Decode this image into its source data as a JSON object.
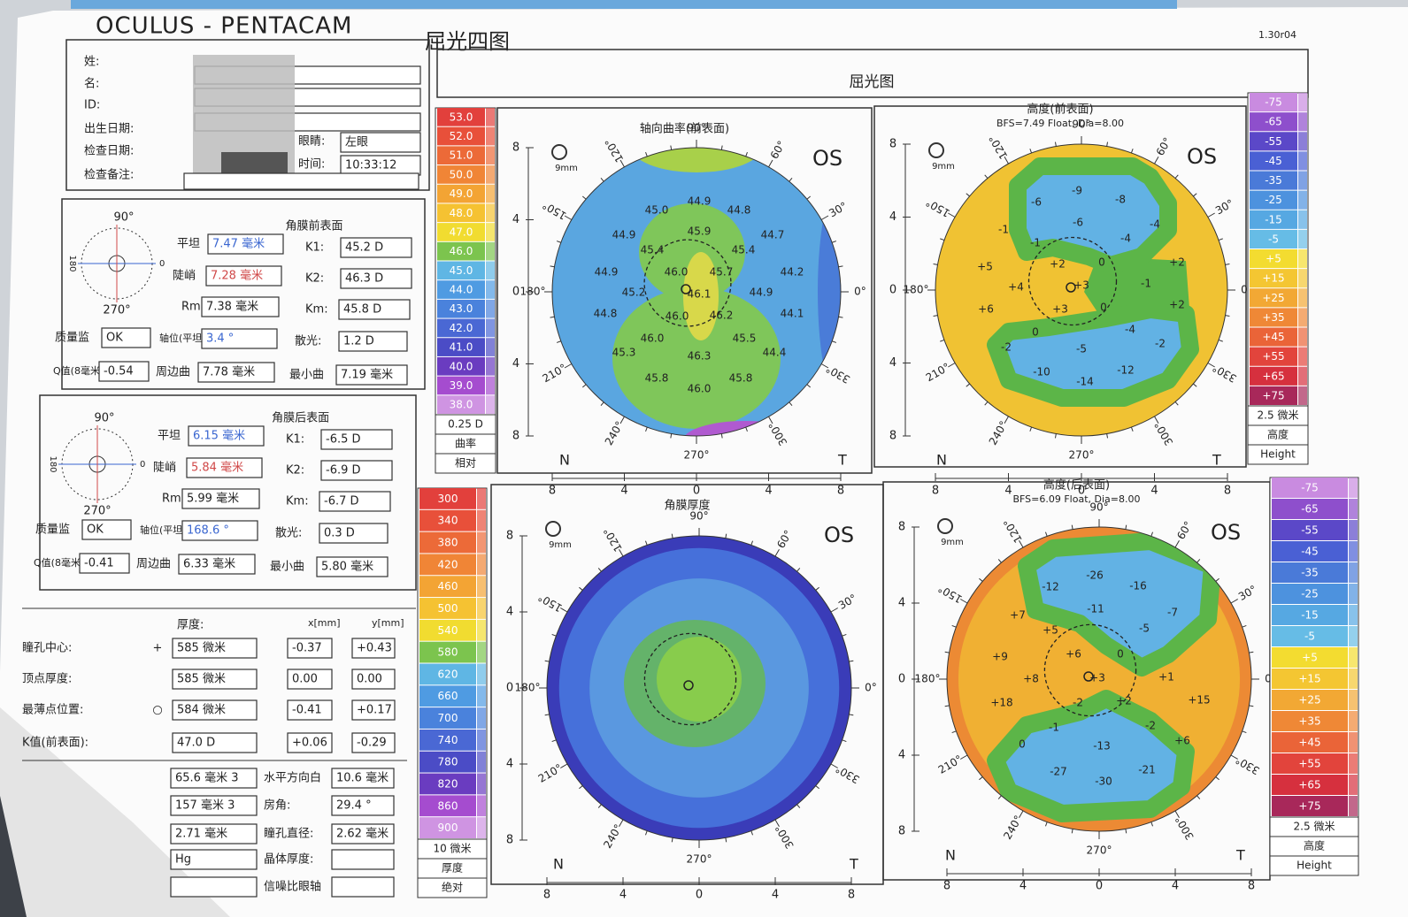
{
  "header": {
    "brand": "OCULUS - PENTACAM",
    "title": "屈光四图",
    "version": "1.30r04"
  },
  "patient": {
    "labels": [
      "姓:",
      "名:",
      "ID:",
      "出生日期:",
      "检查日期:",
      "检查备注:"
    ],
    "eye_label": "眼睛:",
    "eye": "左眼",
    "time_label": "时间:",
    "time": "10:33:12"
  },
  "anterior": {
    "title": "角膜前表面",
    "dial": [
      "90°",
      "270°",
      "0",
      "180"
    ],
    "fields": [
      {
        "label": "平坦",
        "value": "7.47 毫米"
      },
      {
        "label": "K1:",
        "value": "45.2 D"
      },
      {
        "label": "陡峭",
        "value": "7.28 毫米"
      },
      {
        "label": "K2:",
        "value": "46.3 D"
      },
      {
        "label": "Rm:",
        "value": "7.38 毫米"
      },
      {
        "label": "Km:",
        "value": "45.8 D"
      },
      {
        "label": "质量监",
        "value": "OK"
      },
      {
        "label": "轴位(平坦)",
        "value": "3.4 °"
      },
      {
        "label": "散光:",
        "value": "1.2 D"
      },
      {
        "label": "Q值(8毫米)",
        "value": "-0.54"
      },
      {
        "label": "周边曲",
        "value": "7.78 毫米"
      },
      {
        "label": "最小曲",
        "value": "7.19 毫米"
      }
    ]
  },
  "posterior": {
    "title": "角膜后表面",
    "dial": [
      "90°",
      "270°",
      "0",
      "180"
    ],
    "fields": [
      {
        "label": "平坦",
        "value": "6.15 毫米"
      },
      {
        "label": "K1:",
        "value": "-6.5 D"
      },
      {
        "label": "陡峭",
        "value": "5.84 毫米"
      },
      {
        "label": "K2:",
        "value": "-6.9 D"
      },
      {
        "label": "Rm:",
        "value": "5.99 毫米"
      },
      {
        "label": "Km:",
        "value": "-6.7 D"
      },
      {
        "label": "质量监",
        "value": "OK"
      },
      {
        "label": "轴位(平坦)",
        "value": "168.6 °"
      },
      {
        "label": "散光:",
        "value": "0.3 D"
      },
      {
        "label": "Q值(8毫米)",
        "value": "-0.41"
      },
      {
        "label": "周边曲",
        "value": "6.33 毫米"
      },
      {
        "label": "最小曲",
        "value": "5.80 毫米"
      }
    ]
  },
  "thickness": {
    "headers": [
      "厚度:",
      "x[mm]",
      "y[mm]"
    ],
    "rows": [
      {
        "label": "瞳孔中心:",
        "symbol": "+",
        "thickness": "585 微米",
        "x": "-0.37",
        "y": "+0.43"
      },
      {
        "label": "顶点厚度:",
        "thickness": "585 微米",
        "x": "0.00",
        "y": "0.00"
      },
      {
        "label": "最薄点位置:",
        "symbol": "○",
        "thickness": "584 微米",
        "x": "-0.41",
        "y": "+0.17"
      },
      {
        "label": "K值(前表面):",
        "thickness": "47.0 D",
        "x": "+0.06",
        "y": "-0.29"
      }
    ]
  },
  "chamber": {
    "rows": [
      {
        "left": "65.6 毫米 3",
        "label": "水平方向白",
        "right": "10.6 毫米"
      },
      {
        "left": "157 毫米 3",
        "label": "房角:",
        "right": "29.4 °"
      },
      {
        "left": "2.71 毫米",
        "label": "瞳孔直径:",
        "right": "2.62 毫米"
      },
      {
        "left": "Hg",
        "label": "晶体厚度:"
      },
      {
        "label": "信噪比眼轴"
      }
    ]
  },
  "banner": "屈光图",
  "maps": [
    {
      "title": "轴向曲率(前表面)",
      "eye": "OS",
      "zoom": "9mm",
      "nasal": "N",
      "temporal": "T",
      "angles": [
        "90°",
        "60°",
        "30°",
        "0°",
        "330°",
        "300°",
        "270°",
        "240°",
        "210°",
        "180°",
        "150°",
        "120°"
      ],
      "x_axis": [
        "8",
        "4",
        "0",
        "4",
        "8"
      ],
      "y_axis": [
        "8",
        "4",
        "0",
        "4",
        "8"
      ],
      "scale": {
        "labels": [
          "53.0",
          "52.0",
          "51.0",
          "50.0",
          "49.0",
          "48.0",
          "47.0",
          "46.0",
          "45.0",
          "44.0",
          "43.0",
          "42.0",
          "41.0",
          "40.0",
          "39.0",
          "38.0"
        ],
        "colors": [
          "#e2403c",
          "#e8503a",
          "#ec6a38",
          "#f08536",
          "#f3a434",
          "#f5c232",
          "#f1dc30",
          "#7cc44e",
          "#5fb6e4",
          "#4f9be2",
          "#4a82dc",
          "#4a68d4",
          "#4b4cc6",
          "#6a3cc0",
          "#a54ccf",
          "#cf94e2"
        ],
        "step": "0.25 D",
        "kind": "曲率",
        "mode": "相对"
      },
      "values": [
        "44.9",
        "45.0",
        "44.8",
        "44.9",
        "45.9",
        "44.7",
        "45.4",
        "45.4",
        "44.9",
        "46.0",
        "45.7",
        "44.2",
        "45.2",
        "46.1",
        "44.9",
        "44.8",
        "46.0",
        "46.2",
        "44.1",
        "46.0",
        "45.5",
        "45.3",
        "46.3",
        "44.4",
        "45.8",
        "45.8",
        "46.0"
      ]
    },
    {
      "title": "高度(前表面)",
      "subtitle": "BFS=7.49 Float, Dia=8.00",
      "eye": "OS",
      "zoom": "9mm",
      "nasal": "N",
      "temporal": "T",
      "angles": [
        "90°",
        "60°",
        "30°",
        "0°",
        "330°",
        "300°",
        "270°",
        "240°",
        "210°",
        "180°",
        "150°",
        "120°"
      ],
      "x_axis": [
        "8",
        "4",
        "0",
        "4",
        "8"
      ],
      "y_axis": [
        "8",
        "4",
        "0",
        "4",
        "8"
      ],
      "scale": {
        "labels": [
          "-75",
          "-65",
          "-55",
          "-45",
          "-35",
          "-25",
          "-15",
          "-5",
          "+5",
          "+15",
          "+25",
          "+35",
          "+45",
          "+55",
          "+65",
          "+75"
        ],
        "colors": [
          "#c98be0",
          "#8e4fcc",
          "#5b48c8",
          "#4a60d4",
          "#4a7ad8",
          "#4d92de",
          "#56a8e2",
          "#66bce6",
          "#f3dc30",
          "#f4c632",
          "#f2a834",
          "#ef8836",
          "#ea6438",
          "#e2443c",
          "#d6303e",
          "#a8285a"
        ],
        "step": "2.5 微米",
        "kind": "高度",
        "mode": "Height"
      },
      "values": [
        "-9",
        "-6",
        "-8",
        "-1",
        "-6",
        "-4",
        "-1",
        "-4",
        "+5",
        "+2",
        "0",
        "+2",
        "+4",
        "+3",
        "-1",
        "+6",
        "+3",
        "0",
        "+2",
        "0",
        "-4",
        "-2",
        "-5",
        "-2",
        "-10",
        "-14",
        "-12"
      ]
    },
    {
      "title": "角膜厚度",
      "eye": "OS",
      "zoom": "9mm",
      "nasal": "N",
      "temporal": "T",
      "angles": [
        "90°",
        "60°",
        "30°",
        "0°",
        "330°",
        "300°",
        "270°",
        "240°",
        "210°",
        "180°",
        "150°",
        "120°"
      ],
      "x_axis": [
        "8",
        "4",
        "0",
        "4",
        "8"
      ],
      "y_axis": [
        "8",
        "4",
        "0",
        "4",
        "8"
      ],
      "scale": {
        "labels": [
          "300",
          "340",
          "380",
          "420",
          "460",
          "500",
          "540",
          "580",
          "620",
          "660",
          "700",
          "740",
          "780",
          "820",
          "860",
          "900"
        ],
        "colors": [
          "#e2403c",
          "#e8503a",
          "#ec6a38",
          "#f08536",
          "#f3a434",
          "#f5c232",
          "#f1dc30",
          "#7cc44e",
          "#5fb6e4",
          "#4f9be2",
          "#4a82dc",
          "#4a68d4",
          "#4b4cc6",
          "#6a3cc0",
          "#a54ccf",
          "#cf94e2"
        ],
        "step": "10 微米",
        "kind": "厚度",
        "mode": "绝对"
      }
    },
    {
      "title": "高度(后表面)",
      "subtitle": "BFS=6.09 Float, Dia=8.00",
      "eye": "OS",
      "zoom": "9mm",
      "nasal": "N",
      "temporal": "T",
      "angles": [
        "90°",
        "60°",
        "30°",
        "0°",
        "330°",
        "300°",
        "270°",
        "240°",
        "210°",
        "180°",
        "150°",
        "120°"
      ],
      "x_axis": [
        "8",
        "4",
        "0",
        "4",
        "8"
      ],
      "y_axis": [
        "8",
        "4",
        "0",
        "4",
        "8"
      ],
      "scale": {
        "labels": [
          "-75",
          "-65",
          "-55",
          "-45",
          "-35",
          "-25",
          "-15",
          "-5",
          "+5",
          "+15",
          "+25",
          "+35",
          "+45",
          "+55",
          "+65",
          "+75"
        ],
        "colors": [
          "#c98be0",
          "#8e4fcc",
          "#5b48c8",
          "#4a60d4",
          "#4a7ad8",
          "#4d92de",
          "#56a8e2",
          "#66bce6",
          "#f3dc30",
          "#f4c632",
          "#f2a834",
          "#ef8836",
          "#ea6438",
          "#e2443c",
          "#d6303e",
          "#a8285a"
        ],
        "step": "2.5 微米",
        "kind": "高度",
        "mode": "Height"
      },
      "values": [
        "-26",
        "-12",
        "-16",
        "-7",
        "-11",
        "+7",
        "+5",
        "-5",
        "0",
        "+9",
        "+6",
        "+8",
        "+3",
        "+1",
        "+18",
        "-2",
        "+2",
        "+15",
        "-1",
        "-2",
        "+6",
        "0",
        "-13",
        "-27",
        "-30",
        "-21"
      ]
    }
  ]
}
